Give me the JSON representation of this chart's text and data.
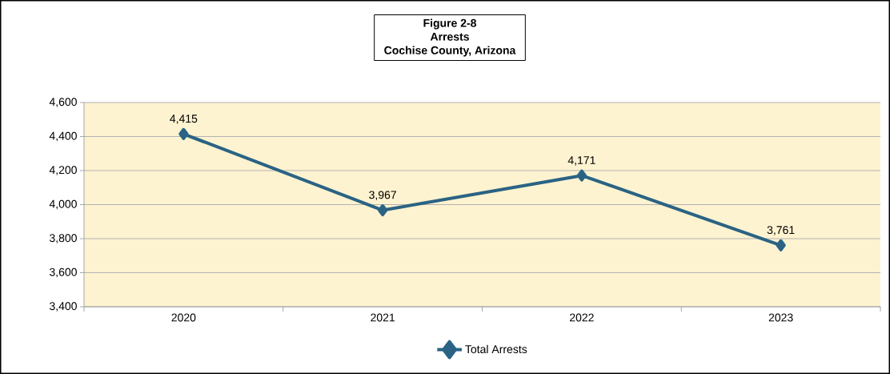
{
  "chart_data": {
    "type": "line",
    "title": "Figure 2-8",
    "subtitle": "Arrests",
    "annotations": [
      "Cochise County, Arizona"
    ],
    "categories": [
      "2020",
      "2021",
      "2022",
      "2023"
    ],
    "series": [
      {
        "name": "Total Arrests",
        "color": "#2a6384",
        "values": [
          4415,
          3967,
          4171,
          3761
        ],
        "value_labels": [
          "4,415",
          "3,967",
          "4,171",
          "3,761"
        ]
      }
    ],
    "ylim": [
      3400,
      4600
    ],
    "yticks": [
      {
        "value": 3400,
        "label": "3,400"
      },
      {
        "value": 3600,
        "label": "3,600"
      },
      {
        "value": 3800,
        "label": "3,800"
      },
      {
        "value": 4000,
        "label": "4,000"
      },
      {
        "value": 4200,
        "label": "4,200"
      },
      {
        "value": 4400,
        "label": "4,400"
      },
      {
        "value": 4600,
        "label": "4,600"
      }
    ],
    "grid": "y",
    "legend": "bottom",
    "marker": "diamond",
    "line_style": "solid"
  }
}
